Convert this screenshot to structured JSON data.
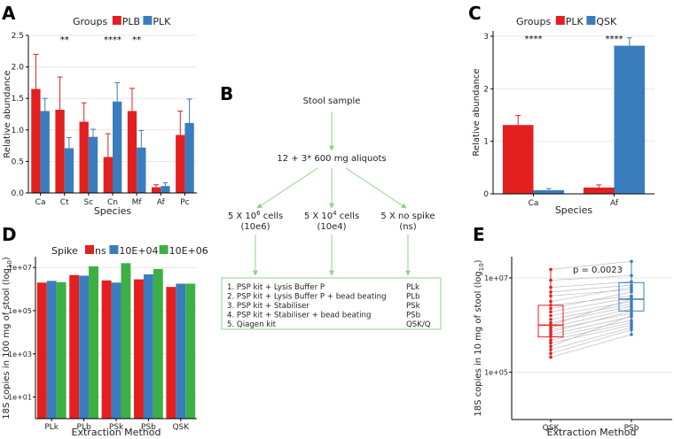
{
  "colors": {
    "red": "#e3201f",
    "blue": "#3a7dbf",
    "green": "#3cb043",
    "arrow": "#8fd08a",
    "grid": "#e6e6e6",
    "axis": "#000000",
    "text": "#222222",
    "pair_line": "#bbbbbb"
  },
  "chart_data": [
    {
      "panel": "A",
      "type": "bar",
      "title": "",
      "xlabel": "Species",
      "ylabel": "Relative abundance",
      "ylim": [
        0,
        2.5
      ],
      "yticks": [
        "0.0",
        "0.5",
        "1.0",
        "1.5",
        "2.0",
        "2.5"
      ],
      "legend_title": "Groups",
      "legend_position": "top",
      "categories": [
        "Ca",
        "Ct",
        "Sc",
        "Cn",
        "Mf",
        "Af",
        "Pc"
      ],
      "series": [
        {
          "name": "PLB",
          "color_key": "red",
          "values": [
            1.65,
            1.32,
            1.13,
            0.57,
            1.3,
            0.09,
            0.92
          ],
          "errors": [
            0.55,
            0.52,
            0.3,
            0.37,
            0.36,
            0.04,
            0.38
          ]
        },
        {
          "name": "PLK",
          "color_key": "blue",
          "values": [
            1.3,
            0.71,
            0.89,
            1.45,
            0.72,
            0.11,
            1.11
          ],
          "errors": [
            0.2,
            0.17,
            0.12,
            0.3,
            0.27,
            0.05,
            0.38
          ]
        }
      ],
      "significance": [
        {
          "category": "Ct",
          "label": "**"
        },
        {
          "category": "Cn",
          "label": "****"
        },
        {
          "category": "Mf",
          "label": "**"
        }
      ]
    },
    {
      "panel": "C",
      "type": "bar",
      "title": "",
      "xlabel": "Species",
      "ylabel": "Relative abundance",
      "ylim": [
        0,
        3.1
      ],
      "yticks": [
        "0",
        "1",
        "2",
        "3"
      ],
      "legend_title": "Groups",
      "legend_position": "top",
      "categories": [
        "Ca",
        "Af"
      ],
      "series": [
        {
          "name": "PLK",
          "color_key": "red",
          "values": [
            1.31,
            0.12
          ],
          "errors": [
            0.18,
            0.05
          ]
        },
        {
          "name": "QSK",
          "color_key": "blue",
          "values": [
            0.07,
            2.82
          ],
          "errors": [
            0.03,
            0.15
          ]
        }
      ],
      "significance": [
        {
          "category": "Ca",
          "label": "****"
        },
        {
          "category": "Af",
          "label": "****"
        }
      ]
    },
    {
      "panel": "D",
      "type": "bar",
      "title": "",
      "xlabel": "Extraction Method",
      "ylabel": "18S copies in 100 mg of stool (log",
      "ylabel_sub": "10",
      "ylabel_end": ")",
      "log_range": [
        0,
        7.5
      ],
      "yticks": [
        {
          "exp": 1,
          "label": "1e+01"
        },
        {
          "exp": 3,
          "label": "1e+03"
        },
        {
          "exp": 5,
          "label": "1e+05"
        },
        {
          "exp": 7,
          "label": "1e+07"
        }
      ],
      "legend_title": "Spike",
      "legend_position": "top",
      "categories": [
        "PLk",
        "PLb",
        "PSk",
        "PSb",
        "QSK"
      ],
      "series": [
        {
          "name": "ns",
          "color_key": "red",
          "values_log10": [
            6.3,
            6.65,
            6.4,
            6.45,
            6.1
          ]
        },
        {
          "name": "10E+04",
          "color_key": "blue",
          "values_log10": [
            6.38,
            6.62,
            6.3,
            6.68,
            6.25
          ]
        },
        {
          "name": "10E+06",
          "color_key": "green",
          "values_log10": [
            6.32,
            7.05,
            7.2,
            6.93,
            6.25
          ]
        }
      ]
    },
    {
      "panel": "E",
      "type": "scatter",
      "title": "",
      "xlabel": "Extraction Method",
      "ylabel": "18S copies in 10 mg of stool (log",
      "ylabel_sub": "10",
      "ylabel_end": ")",
      "log_range": [
        4.0,
        7.45
      ],
      "yticks": [
        {
          "exp": 5,
          "label": "1e+05"
        },
        {
          "exp": 7,
          "label": "1e+07"
        }
      ],
      "annotation": "p = 0.0023",
      "categories": [
        "QSK",
        "PSb"
      ],
      "box": [
        {
          "category": "QSK",
          "color_key": "red",
          "q1": 5.75,
          "median": 6.0,
          "q3": 6.42,
          "low": 5.32,
          "high": 7.18
        },
        {
          "category": "PSb",
          "color_key": "blue",
          "q1": 6.3,
          "median": 6.55,
          "q3": 6.9,
          "low": 5.8,
          "high": 7.35
        }
      ],
      "pairs": [
        [
          7.18,
          7.35
        ],
        [
          6.95,
          7.05
        ],
        [
          6.8,
          6.92
        ],
        [
          6.7,
          6.85
        ],
        [
          6.62,
          6.75
        ],
        [
          6.5,
          6.8
        ],
        [
          6.42,
          6.62
        ],
        [
          6.35,
          6.7
        ],
        [
          6.28,
          6.58
        ],
        [
          6.2,
          6.5
        ],
        [
          6.12,
          6.45
        ],
        [
          6.05,
          6.4
        ],
        [
          6.0,
          6.55
        ],
        [
          5.95,
          6.35
        ],
        [
          5.9,
          6.25
        ],
        [
          5.85,
          6.3
        ],
        [
          5.8,
          6.18
        ],
        [
          5.75,
          6.1
        ],
        [
          5.68,
          6.05
        ],
        [
          5.62,
          6.0
        ],
        [
          5.55,
          6.2
        ],
        [
          5.48,
          5.95
        ],
        [
          5.4,
          5.9
        ],
        [
          5.32,
          5.8
        ]
      ]
    }
  ],
  "panels": {
    "a_letter": "A",
    "b_letter": "B",
    "c_letter": "C",
    "d_letter": "D",
    "e_letter": "E"
  },
  "flowchart": {
    "source": "Stool sample",
    "aliquots": "12 + 3* 600 mg aliquots",
    "spikes": [
      {
        "line1_base": "5 X 10",
        "line1_sup": "6",
        "line1_tail": " cells",
        "line2": "(10e6)"
      },
      {
        "line1_base": "5 X 10",
        "line1_sup": "4",
        "line1_tail": " cells",
        "line2": "(10e4)"
      },
      {
        "line1_base": "5 X no spike",
        "line1_sup": "",
        "line1_tail": "",
        "line2": "(ns)"
      }
    ],
    "methods": [
      {
        "text": "1. PSP kit + Lysis Buffer P",
        "code": "PLk"
      },
      {
        "text": "2. PSP kit + Lysis Buffer P + bead beating",
        "code": "PLb"
      },
      {
        "text": "3. PSP kit + Stabiliser",
        "code": "PSk"
      },
      {
        "text": "4. PSP kit + Stabiliser + bead beating",
        "code": "PSb"
      },
      {
        "text": "5. Qiagen kit",
        "code": "QSK/Q"
      }
    ]
  }
}
